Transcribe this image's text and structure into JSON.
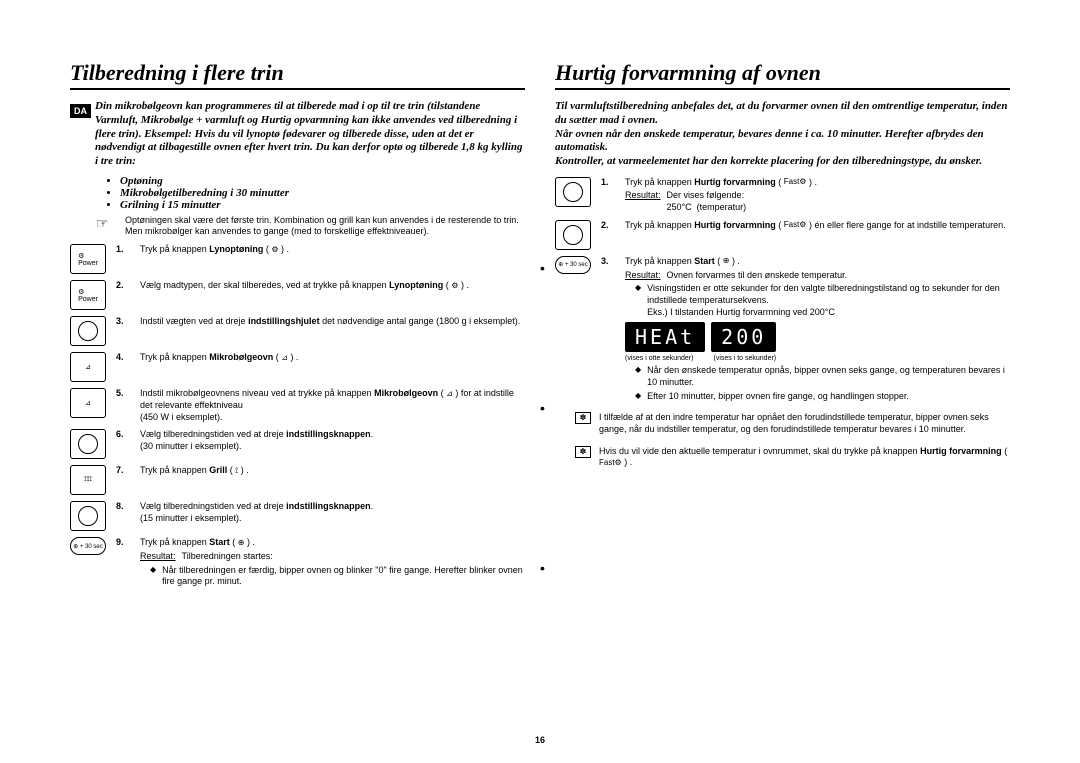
{
  "footer_page": "16",
  "left": {
    "title": "Tilberedning i flere trin",
    "lang": "DA",
    "intro": "Din mikrobølgeovn kan programmeres til at tilberede mad i op til tre trin (tilstandene Varmluft, Mikrobølge + varmluft og Hurtig opvarmning kan ikke anvendes ved tilberedning i flere trin). Eksempel: Hvis du vil lynoptø fødevarer og tilberede disse, uden at det er nødvendigt at tilbagestille ovnen efter hvert trin. Du kan derfor optø og tilberede 1,8 kg kylling i tre trin:",
    "bullets": [
      "Optøning",
      "Mikrobølgetilberedning i 30 minutter",
      "Grilning i 15 minutter"
    ],
    "note": "Optøningen skal være det første trin. Kombination og grill kan kun anvendes i de resterende to trin. Men mikrobølger kan anvendes to gange (med to forskellige effektniveauer).",
    "steps": [
      {
        "n": "1.",
        "icon": "power",
        "html": "Tryk på knappen <b>Lynoptøning</b> ( <span class='mini-icon'>⚙</span> ) ."
      },
      {
        "n": "2.",
        "icon": "power",
        "html": "Vælg madtypen, der skal tilberedes, ved at trykke på knappen <b>Lynoptøning</b> ( <span class='mini-icon'>⚙</span> ) ."
      },
      {
        "n": "3.",
        "icon": "dial",
        "html": "Indstil vægten ved at dreje <b>indstillingshjulet</b> det nødvendige antal gange (1800 g i eksemplet)."
      },
      {
        "n": "4.",
        "icon": "micro",
        "html": "Tryk på knappen <b>Mikrobølgeovn</b> ( <span class='mini-icon'>⊿</span> ) ."
      },
      {
        "n": "5.",
        "icon": "micro",
        "html": "Indstil mikrobølgeovnens niveau ved at trykke på knappen <b>Mikrobølgeovn</b> ( <span class='mini-icon'>⊿</span> ) for at indstille det relevante effektniveau<br>(450 W i eksemplet)."
      },
      {
        "n": "6.",
        "icon": "dial",
        "html": "Vælg tilberedningstiden ved at dreje <b>indstillingsknappen</b>.<br>(30 minutter i eksemplet)."
      },
      {
        "n": "7.",
        "icon": "grill",
        "html": "Tryk på knappen <b>Grill</b> ( <span class='mini-icon'>⟟</span> ) ."
      },
      {
        "n": "8.",
        "icon": "dial",
        "html": "Vælg tilberedningstiden ved at dreje <b>indstillingsknappen</b>.<br>(15 minutter i eksemplet)."
      },
      {
        "n": "9.",
        "icon": "start",
        "html": "Tryk på knappen <b>Start</b> ( <span class='mini-icon'>⊕</span> ) ."
      }
    ],
    "result_label": "Resultat:",
    "result_text": "Tilberedningen startes:",
    "result_bullet": "Når tilberedningen er færdig, bipper ovnen og blinker \"0\" fire gange. Herefter blinker ovnen fire gange pr. minut.",
    "start_label": "⊕ + 30 sec"
  },
  "right": {
    "title": "Hurtig forvarmning af ovnen",
    "intro": "Til varmluftstilberedning anbefales det, at du forvarmer ovnen til den omtrentlige temperatur, inden du sætter mad i ovnen.\nNår ovnen når den ønskede temperatur, bevares denne i ca. 10 minutter. Herefter afbrydes den automatisk.\nKontroller, at varmeelementet har den korrekte placering for den tilberedningstype, du ønsker.",
    "steps": [
      {
        "n": "1.",
        "icon": "dial",
        "html": "Tryk på knappen <b>Hurtig forvarmning</b> ( <span class='mini-icon'>Fast⚙</span> ) .",
        "result_label": "Resultat:",
        "result_text": "Der vises følgende:<br>250°C&nbsp;&nbsp;(temperatur)"
      },
      {
        "n": "2.",
        "icon": "dial",
        "html": "Tryk på knappen <b>Hurtig forvarmning</b> ( <span class='mini-icon'>Fast⚙</span> ) én eller flere gange for at indstille temperaturen."
      },
      {
        "n": "3.",
        "icon": "start",
        "html": "Tryk på knappen <b>Start</b> ( <span class='mini-icon'>⊕</span> ) .",
        "result_label": "Resultat:",
        "result_text": "Ovnen forvarmes til den ønskede temperatur.",
        "result_bullets": [
          "Visningstiden er otte sekunder for den valgte tilberedningstilstand og to sekunder for den indstillede temperatursekvens.<br>Eks.) I tilstanden Hurtig forvarmning ved 200°C",
          "Når den ønskede temperatur opnås, bipper ovnen seks gange, og temperaturen bevares i 10 minutter.",
          "Efter 10 minutter, bipper ovnen fire gange, og handlingen stopper."
        ]
      }
    ],
    "display1": "HEAt",
    "display2": "200",
    "caption1": "(vises i otte sekunder)",
    "caption2": "(vises i to sekunder)",
    "start_label": "⊕ + 30 sec",
    "notes": [
      "I tilfælde af at den indre temperatur har opnået den forudindstillede temperatur, bipper ovnen seks gange, når du indstiller temperatur, og den forudindstillede temperatur bevares i 10 minutter.",
      "Hvis du vil vide den aktuelle temperatur i ovnrummet, skal du trykke på knappen <b>Hurtig forvarmning</b> ( <span class='mini-icon'>Fast⚙</span> ) ."
    ]
  }
}
